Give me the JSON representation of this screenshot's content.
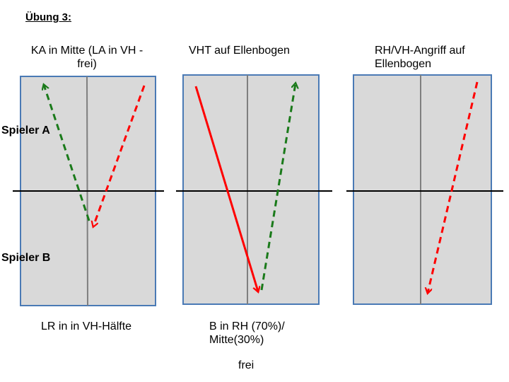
{
  "slide": {
    "title": "Übung 3:"
  },
  "players": {
    "a": "Spieler A",
    "b": "Spieler B"
  },
  "panels": [
    {
      "caption_top_line1": "KA in Mitte (LA in VH -",
      "caption_top_line2": "frei)",
      "caption_bottom": "LR in in VH-Hälfte"
    },
    {
      "caption_top": "VHT auf Ellenbogen",
      "caption_bottom_line1": "B in RH (70%)/",
      "caption_bottom_line2": "Mitte(30%)",
      "caption_extra": "frei"
    },
    {
      "caption_top_line1": "RH/VH-Angriff auf",
      "caption_top_line2": "Ellenbogen"
    }
  ],
  "colors": {
    "table_fill": "#d9d9d9",
    "table_border": "#4a7ab5",
    "center_line": "#7f7f7f",
    "net": "#000000",
    "arrow_red": "#ff0000",
    "arrow_green": "#1a7a1a"
  }
}
